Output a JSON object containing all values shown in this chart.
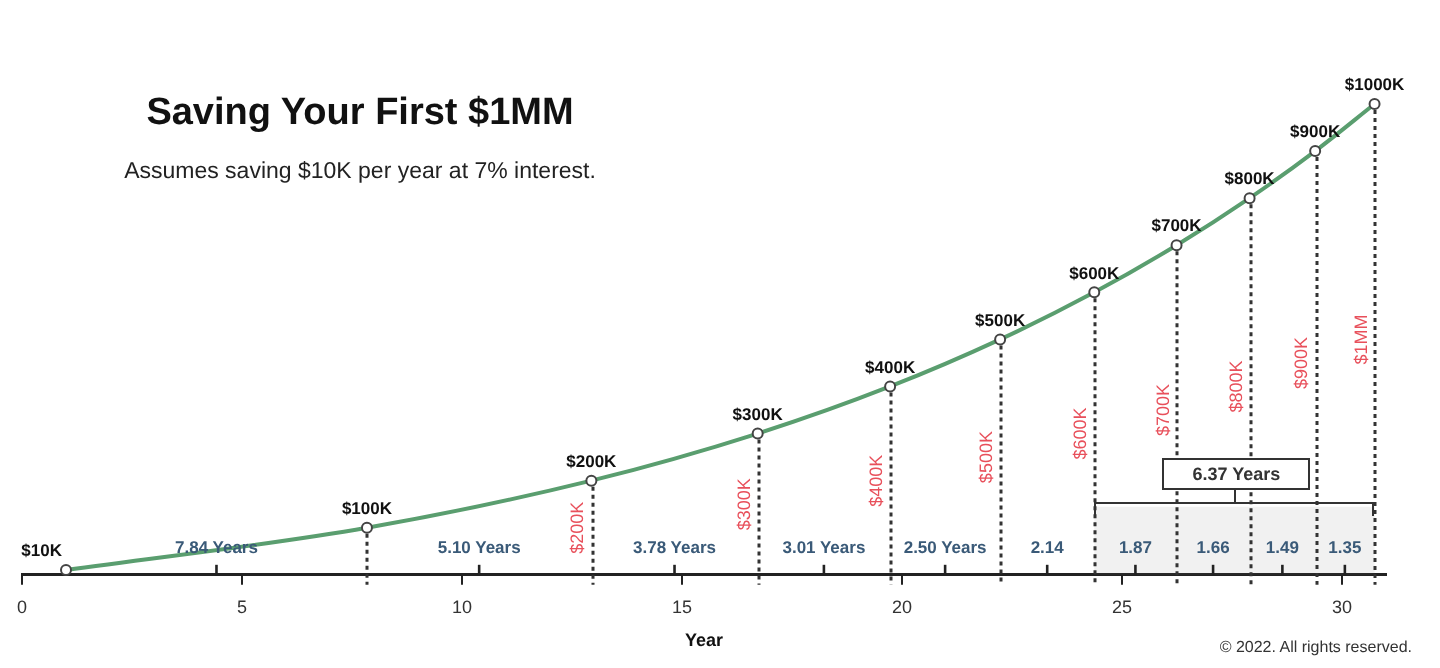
{
  "chart_data": {
    "type": "line",
    "title": "Saving Your First $1MM",
    "subtitle": "Assumes saving $10K per year at 7% interest.",
    "xlabel": "Year",
    "x": [
      1,
      7.84,
      12.94,
      16.72,
      19.73,
      22.23,
      24.37,
      26.24,
      27.9,
      29.39,
      30.74
    ],
    "series": [
      {
        "color": "#5a9e6f",
        "values": [
          10,
          100,
          200,
          300,
          400,
          500,
          600,
          700,
          800,
          900,
          1000
        ],
        "value_labels": [
          "$10K",
          "$100K",
          "$200K",
          "$300K",
          "$400K",
          "$500K",
          "$600K",
          "$700K",
          "$800K",
          "$900K",
          "$1000K"
        ]
      }
    ],
    "xlim": [
      0,
      31
    ],
    "xticks": [
      0,
      5,
      10,
      15,
      20,
      25,
      30
    ],
    "tick_labels": "x",
    "grid": false,
    "legend": false,
    "marker": "circle",
    "bands": [
      {
        "axis": "x",
        "from": 24.37,
        "to": 30.74,
        "label": "6.37 Years"
      }
    ],
    "annotations": [
      "7.84 Years",
      "5.10 Years",
      "3.78 Years",
      "3.01 Years",
      "2.50 Years",
      "2.14",
      "1.87",
      "1.66",
      "1.49",
      "1.35",
      "$200K",
      "$300K",
      "$400K",
      "$500K",
      "$600K",
      "$700K",
      "$800K",
      "$900K",
      "$1MM",
      "© 2022. All rights reserved."
    ]
  }
}
